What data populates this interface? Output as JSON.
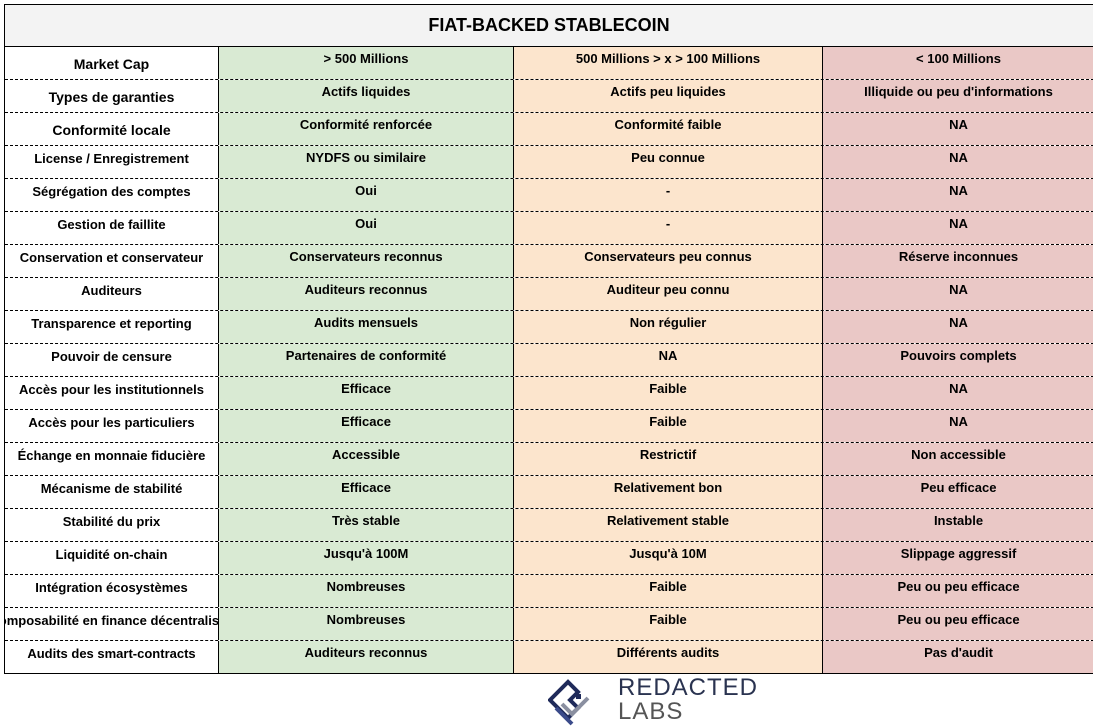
{
  "title": "FIAT-BACKED STABLECOIN",
  "colors": {
    "tier1": "#d9ead3",
    "tier2": "#fce5cd",
    "tier3": "#eac8c6",
    "title_bg": "#f3f3f3"
  },
  "rows": [
    [
      "Market Cap",
      "> 500 Millions",
      "500 Millions > x > 100 Millions",
      "< 100 Millions"
    ],
    [
      "Types de garanties",
      "Actifs liquides",
      "Actifs peu liquides",
      "Illiquide ou peu d'informations"
    ],
    [
      "Conformité locale",
      "Conformité renforcée",
      "Conformité faible",
      "NA"
    ],
    [
      "License / Enregistrement",
      "NYDFS ou similaire",
      "Peu connue",
      "NA"
    ],
    [
      "Ségrégation des comptes",
      "Oui",
      "-",
      "NA"
    ],
    [
      "Gestion de faillite",
      "Oui",
      "-",
      "NA"
    ],
    [
      "Conservation et conservateur",
      "Conservateurs reconnus",
      "Conservateurs peu connus",
      "Réserve inconnues"
    ],
    [
      "Auditeurs",
      "Auditeurs reconnus",
      "Auditeur peu connu",
      "NA"
    ],
    [
      "Transparence et reporting",
      "Audits mensuels",
      "Non régulier",
      "NA"
    ],
    [
      "Pouvoir de censure",
      "Partenaires de conformité",
      "NA",
      "Pouvoirs complets"
    ],
    [
      "Accès pour les institutionnels",
      "Efficace",
      "Faible",
      "NA"
    ],
    [
      "Accès pour les particuliers",
      "Efficace",
      "Faible",
      "NA"
    ],
    [
      "Échange en monnaie fiducière",
      "Accessible",
      "Restrictif",
      "Non accessible"
    ],
    [
      "Mécanisme de stabilité",
      "Efficace",
      "Relativement bon",
      "Peu efficace"
    ],
    [
      "Stabilité du prix",
      "Très stable",
      "Relativement stable",
      "Instable"
    ],
    [
      "Liquidité on-chain",
      "Jusqu'à 100M",
      "Jusqu'à 10M",
      "Slippage aggressif"
    ],
    [
      "Intégration écosystèmes",
      "Nombreuses",
      "Faible",
      "Peu ou peu efficace"
    ],
    [
      "Composabilité en finance décentralisée",
      "Nombreuses",
      "Faible",
      "Peu ou peu efficace"
    ],
    [
      "Audits des smart-contracts",
      "Auditeurs reconnus",
      "Différents audits",
      "Pas d'audit"
    ]
  ],
  "logo": {
    "line1": "REDACTED",
    "line2": "LABS"
  }
}
